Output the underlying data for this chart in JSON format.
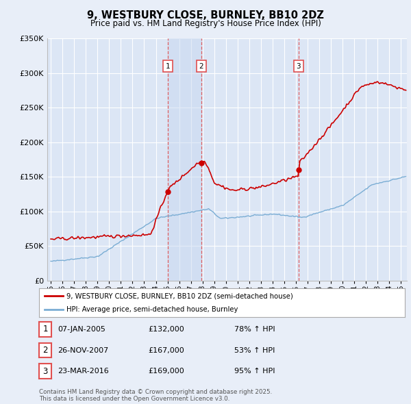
{
  "title": "9, WESTBURY CLOSE, BURNLEY, BB10 2DZ",
  "subtitle": "Price paid vs. HM Land Registry's House Price Index (HPI)",
  "red_label": "9, WESTBURY CLOSE, BURNLEY, BB10 2DZ (semi-detached house)",
  "blue_label": "HPI: Average price, semi-detached house, Burnley",
  "footer": "Contains HM Land Registry data © Crown copyright and database right 2025.\nThis data is licensed under the Open Government Licence v3.0.",
  "sales": [
    {
      "num": 1,
      "date_label": "07-JAN-2005",
      "year": 2005.03,
      "price": 132000,
      "hpi_pct": "78%",
      "arrow": "↑"
    },
    {
      "num": 2,
      "date_label": "26-NOV-2007",
      "year": 2007.9,
      "price": 167000,
      "hpi_pct": "53%",
      "arrow": "↑"
    },
    {
      "num": 3,
      "date_label": "23-MAR-2016",
      "year": 2016.22,
      "price": 169000,
      "hpi_pct": "95%",
      "arrow": "↑"
    }
  ],
  "ylim": [
    0,
    350000
  ],
  "yticks": [
    0,
    50000,
    100000,
    150000,
    200000,
    250000,
    300000,
    350000
  ],
  "bg_color": "#e8eef8",
  "plot_bg": "#dce6f5",
  "grid_color": "#ffffff",
  "red_color": "#cc0000",
  "blue_color": "#7aadd4",
  "vline_color": "#e05050",
  "shade_color": "#c8d8f0"
}
